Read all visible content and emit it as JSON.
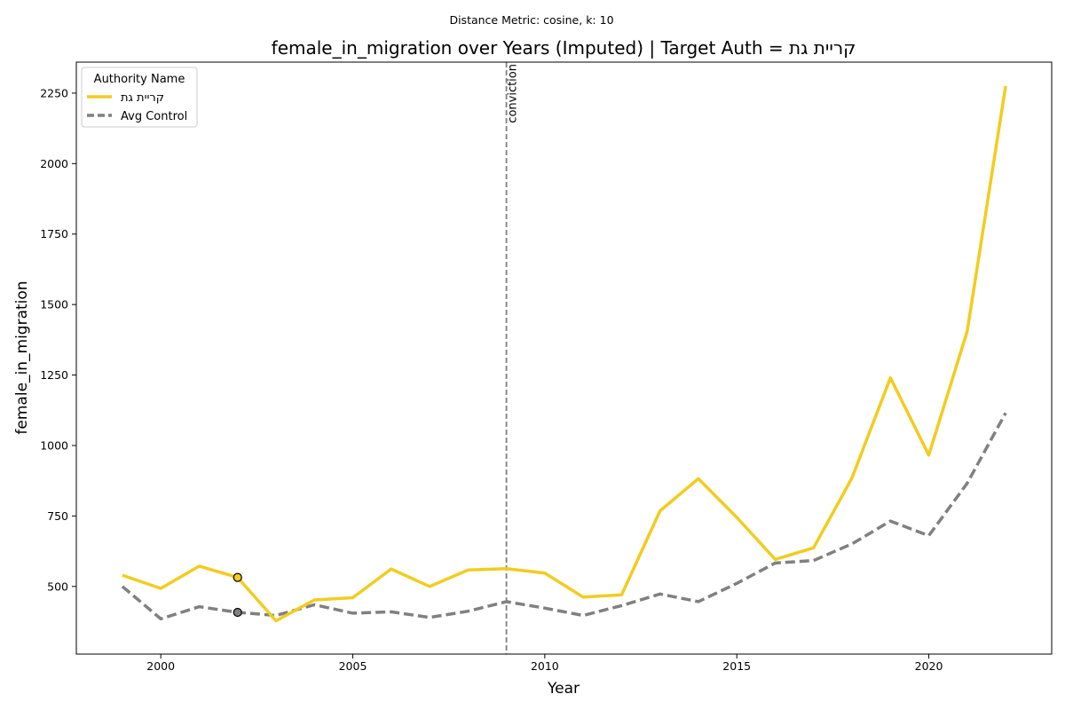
{
  "chart_data": {
    "type": "line",
    "suptitle": "Distance Metric: cosine, k: 10",
    "title": "female_in_migration over Years (Imputed) | Target Auth = קריית גת",
    "xlabel": "Year",
    "ylabel": "female_in_migration",
    "xlim": [
      1997.8,
      2023.2
    ],
    "ylim": [
      260,
      2360
    ],
    "xticks": [
      2000,
      2005,
      2010,
      2015,
      2020
    ],
    "yticks": [
      500,
      750,
      1000,
      1250,
      1500,
      1750,
      2000,
      2250
    ],
    "grid": false,
    "legend": {
      "title": "Authority Name",
      "placement": "top-left"
    },
    "x": [
      1999,
      2000,
      2001,
      2002,
      2003,
      2004,
      2005,
      2006,
      2007,
      2008,
      2009,
      2010,
      2011,
      2012,
      2013,
      2014,
      2015,
      2016,
      2017,
      2018,
      2019,
      2020,
      2021,
      2022
    ],
    "series": [
      {
        "name": "קריית גת",
        "color": "#f2cc1f",
        "style": "solid",
        "values": [
          540,
          493,
          572,
          532,
          378,
          452,
          460,
          562,
          500,
          558,
          563,
          547,
          462,
          470,
          768,
          882,
          745,
          596,
          637,
          885,
          1240,
          966,
          1405,
          2275
        ]
      },
      {
        "name": "Avg Control",
        "color": "#808080",
        "style": "dashed",
        "values": [
          500,
          385,
          428,
          408,
          397,
          435,
          405,
          410,
          390,
          412,
          446,
          423,
          397,
          432,
          473,
          446,
          511,
          583,
          592,
          651,
          732,
          680,
          866,
          1115
        ]
      }
    ],
    "markers": [
      {
        "x": 2002,
        "y": 532,
        "color": "#f2cc1f"
      },
      {
        "x": 2002,
        "y": 408,
        "color": "#808080"
      }
    ],
    "vline": {
      "x": 2009,
      "label": "conviction",
      "color": "#808080"
    }
  }
}
